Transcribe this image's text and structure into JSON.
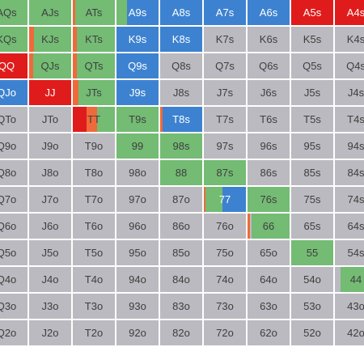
{
  "colors": {
    "fold": "#babac0",
    "raise": "#e01b1b",
    "call": "#74bb74",
    "allin": "#3d82d0",
    "limp": "#ef6a3a",
    "text_dark": "#3f3f3f",
    "text_light": "#ffffff"
  },
  "rows": [
    [
      {
        "label": "AQs",
        "segs": [
          [
            "call",
            1
          ]
        ]
      },
      {
        "label": "AJs",
        "segs": [
          [
            "call",
            1
          ]
        ]
      },
      {
        "label": "ATs",
        "segs": [
          [
            "limp",
            0.06
          ],
          [
            "call",
            0.94
          ]
        ]
      },
      {
        "label": "A9s",
        "segs": [
          [
            "call",
            0.25
          ],
          [
            "allin",
            0.75
          ]
        ]
      },
      {
        "label": "A8s",
        "segs": [
          [
            "allin",
            1
          ]
        ]
      },
      {
        "label": "A7s",
        "segs": [
          [
            "allin",
            1
          ]
        ]
      },
      {
        "label": "A6s",
        "segs": [
          [
            "allin",
            1
          ]
        ]
      },
      {
        "label": "A5s",
        "segs": [
          [
            "raise",
            1
          ]
        ]
      },
      {
        "label": "A4s",
        "segs": [
          [
            "raise",
            1
          ]
        ]
      }
    ],
    [
      {
        "label": "KQs",
        "segs": [
          [
            "call",
            1
          ]
        ]
      },
      {
        "label": "KJs",
        "segs": [
          [
            "limp",
            0.12
          ],
          [
            "call",
            0.88
          ]
        ]
      },
      {
        "label": "KTs",
        "segs": [
          [
            "limp",
            0.1
          ],
          [
            "call",
            0.9
          ]
        ]
      },
      {
        "label": "K9s",
        "segs": [
          [
            "allin",
            1
          ]
        ]
      },
      {
        "label": "K8s",
        "segs": [
          [
            "allin",
            1
          ]
        ]
      },
      {
        "label": "K7s",
        "segs": [
          [
            "fold",
            1
          ]
        ]
      },
      {
        "label": "K6s",
        "segs": [
          [
            "fold",
            1
          ]
        ]
      },
      {
        "label": "K5s",
        "segs": [
          [
            "fold",
            1
          ]
        ]
      },
      {
        "label": "K4s",
        "segs": [
          [
            "fold",
            1
          ]
        ]
      }
    ],
    [
      {
        "label": "QQ",
        "segs": [
          [
            "raise",
            1
          ]
        ]
      },
      {
        "label": "QJs",
        "segs": [
          [
            "limp",
            0.1
          ],
          [
            "call",
            0.9
          ]
        ]
      },
      {
        "label": "QTs",
        "segs": [
          [
            "limp",
            0.1
          ],
          [
            "call",
            0.9
          ]
        ]
      },
      {
        "label": "Q9s",
        "segs": [
          [
            "allin",
            1
          ]
        ]
      },
      {
        "label": "Q8s",
        "segs": [
          [
            "fold",
            1
          ]
        ]
      },
      {
        "label": "Q7s",
        "segs": [
          [
            "fold",
            1
          ]
        ]
      },
      {
        "label": "Q6s",
        "segs": [
          [
            "fold",
            1
          ]
        ]
      },
      {
        "label": "Q5s",
        "segs": [
          [
            "fold",
            1
          ]
        ]
      },
      {
        "label": "Q4s",
        "segs": [
          [
            "fold",
            1
          ]
        ]
      }
    ],
    [
      {
        "label": "QJo",
        "segs": [
          [
            "allin",
            1
          ]
        ]
      },
      {
        "label": "JJ",
        "segs": [
          [
            "raise",
            1
          ]
        ]
      },
      {
        "label": "JTs",
        "segs": [
          [
            "limp",
            0.14
          ],
          [
            "call",
            0.86
          ]
        ]
      },
      {
        "label": "J9s",
        "segs": [
          [
            "allin",
            1
          ]
        ]
      },
      {
        "label": "J8s",
        "segs": [
          [
            "fold",
            1
          ]
        ]
      },
      {
        "label": "J7s",
        "segs": [
          [
            "fold",
            1
          ]
        ]
      },
      {
        "label": "J6s",
        "segs": [
          [
            "fold",
            1
          ]
        ]
      },
      {
        "label": "J5s",
        "segs": [
          [
            "fold",
            1
          ]
        ]
      },
      {
        "label": "J4s",
        "segs": [
          [
            "fold",
            1
          ]
        ]
      }
    ],
    [
      {
        "label": "QTo",
        "segs": [
          [
            "fold",
            1
          ]
        ]
      },
      {
        "label": "JTo",
        "segs": [
          [
            "fold",
            1
          ]
        ]
      },
      {
        "label": "TT",
        "segs": [
          [
            "raise",
            0.32
          ],
          [
            "limp",
            0.26
          ],
          [
            "call",
            0.42
          ]
        ]
      },
      {
        "label": "T9s",
        "segs": [
          [
            "call",
            1
          ]
        ]
      },
      {
        "label": "T8s",
        "segs": [
          [
            "limp",
            0.05
          ],
          [
            "allin",
            0.95
          ]
        ]
      },
      {
        "label": "T7s",
        "segs": [
          [
            "fold",
            1
          ]
        ]
      },
      {
        "label": "T6s",
        "segs": [
          [
            "fold",
            1
          ]
        ]
      },
      {
        "label": "T5s",
        "segs": [
          [
            "fold",
            1
          ]
        ]
      },
      {
        "label": "T4s",
        "segs": [
          [
            "fold",
            1
          ]
        ]
      }
    ],
    [
      {
        "label": "Q9o",
        "segs": [
          [
            "fold",
            1
          ]
        ]
      },
      {
        "label": "J9o",
        "segs": [
          [
            "fold",
            1
          ]
        ]
      },
      {
        "label": "T9o",
        "segs": [
          [
            "fold",
            1
          ]
        ]
      },
      {
        "label": "99",
        "segs": [
          [
            "call",
            1
          ]
        ]
      },
      {
        "label": "98s",
        "segs": [
          [
            "call",
            1
          ]
        ]
      },
      {
        "label": "97s",
        "segs": [
          [
            "fold",
            1
          ]
        ]
      },
      {
        "label": "96s",
        "segs": [
          [
            "fold",
            1
          ]
        ]
      },
      {
        "label": "95s",
        "segs": [
          [
            "fold",
            1
          ]
        ]
      },
      {
        "label": "94s",
        "segs": [
          [
            "fold",
            1
          ]
        ]
      }
    ],
    [
      {
        "label": "Q8o",
        "segs": [
          [
            "fold",
            1
          ]
        ]
      },
      {
        "label": "J8o",
        "segs": [
          [
            "fold",
            1
          ]
        ]
      },
      {
        "label": "T8o",
        "segs": [
          [
            "fold",
            1
          ]
        ]
      },
      {
        "label": "98o",
        "segs": [
          [
            "fold",
            1
          ]
        ]
      },
      {
        "label": "88",
        "segs": [
          [
            "call",
            1
          ]
        ]
      },
      {
        "label": "87s",
        "segs": [
          [
            "call",
            1
          ]
        ]
      },
      {
        "label": "86s",
        "segs": [
          [
            "fold",
            1
          ]
        ]
      },
      {
        "label": "85s",
        "segs": [
          [
            "fold",
            1
          ]
        ]
      },
      {
        "label": "84s",
        "segs": [
          [
            "fold",
            1
          ]
        ]
      }
    ],
    [
      {
        "label": "Q7o",
        "segs": [
          [
            "fold",
            1
          ]
        ]
      },
      {
        "label": "J7o",
        "segs": [
          [
            "fold",
            1
          ]
        ]
      },
      {
        "label": "T7o",
        "segs": [
          [
            "fold",
            1
          ]
        ]
      },
      {
        "label": "97o",
        "segs": [
          [
            "fold",
            1
          ]
        ]
      },
      {
        "label": "87o",
        "segs": [
          [
            "fold",
            1
          ]
        ]
      },
      {
        "label": "77",
        "segs": [
          [
            "limp",
            0.04
          ],
          [
            "call",
            0.4
          ],
          [
            "allin",
            0.56
          ]
        ]
      },
      {
        "label": "76s",
        "segs": [
          [
            "call",
            1
          ]
        ]
      },
      {
        "label": "75s",
        "segs": [
          [
            "fold",
            1
          ]
        ]
      },
      {
        "label": "74s",
        "segs": [
          [
            "fold",
            1
          ]
        ]
      }
    ],
    [
      {
        "label": "Q6o",
        "segs": [
          [
            "fold",
            1
          ]
        ]
      },
      {
        "label": "J6o",
        "segs": [
          [
            "fold",
            1
          ]
        ]
      },
      {
        "label": "T6o",
        "segs": [
          [
            "fold",
            1
          ]
        ]
      },
      {
        "label": "96o",
        "segs": [
          [
            "fold",
            1
          ]
        ]
      },
      {
        "label": "86o",
        "segs": [
          [
            "fold",
            1
          ]
        ]
      },
      {
        "label": "76o",
        "segs": [
          [
            "fold",
            1
          ]
        ]
      },
      {
        "label": "66",
        "segs": [
          [
            "limp",
            0.05
          ],
          [
            "fold",
            0.05
          ],
          [
            "call",
            0.9
          ]
        ]
      },
      {
        "label": "65s",
        "segs": [
          [
            "fold",
            1
          ]
        ]
      },
      {
        "label": "64s",
        "segs": [
          [
            "fold",
            1
          ]
        ]
      }
    ],
    [
      {
        "label": "Q5o",
        "segs": [
          [
            "fold",
            1
          ]
        ]
      },
      {
        "label": "J5o",
        "segs": [
          [
            "fold",
            1
          ]
        ]
      },
      {
        "label": "T5o",
        "segs": [
          [
            "fold",
            1
          ]
        ]
      },
      {
        "label": "95o",
        "segs": [
          [
            "fold",
            1
          ]
        ]
      },
      {
        "label": "85o",
        "segs": [
          [
            "fold",
            1
          ]
        ]
      },
      {
        "label": "75o",
        "segs": [
          [
            "fold",
            1
          ]
        ]
      },
      {
        "label": "65o",
        "segs": [
          [
            "fold",
            1
          ]
        ]
      },
      {
        "label": "55",
        "segs": [
          [
            "call",
            1
          ]
        ]
      },
      {
        "label": "54s",
        "segs": [
          [
            "fold",
            1
          ]
        ]
      }
    ],
    [
      {
        "label": "Q4o",
        "segs": [
          [
            "fold",
            1
          ]
        ]
      },
      {
        "label": "J4o",
        "segs": [
          [
            "fold",
            1
          ]
        ]
      },
      {
        "label": "T4o",
        "segs": [
          [
            "fold",
            1
          ]
        ]
      },
      {
        "label": "94o",
        "segs": [
          [
            "fold",
            1
          ]
        ]
      },
      {
        "label": "84o",
        "segs": [
          [
            "fold",
            1
          ]
        ]
      },
      {
        "label": "74o",
        "segs": [
          [
            "fold",
            1
          ]
        ]
      },
      {
        "label": "64o",
        "segs": [
          [
            "fold",
            1
          ]
        ]
      },
      {
        "label": "54o",
        "segs": [
          [
            "fold",
            1
          ]
        ]
      },
      {
        "label": "44",
        "segs": [
          [
            "fold",
            0.14
          ],
          [
            "call",
            0.86
          ]
        ]
      }
    ],
    [
      {
        "label": "Q3o",
        "segs": [
          [
            "fold",
            1
          ]
        ]
      },
      {
        "label": "J3o",
        "segs": [
          [
            "fold",
            1
          ]
        ]
      },
      {
        "label": "T3o",
        "segs": [
          [
            "fold",
            1
          ]
        ]
      },
      {
        "label": "93o",
        "segs": [
          [
            "fold",
            1
          ]
        ]
      },
      {
        "label": "83o",
        "segs": [
          [
            "fold",
            1
          ]
        ]
      },
      {
        "label": "73o",
        "segs": [
          [
            "fold",
            1
          ]
        ]
      },
      {
        "label": "63o",
        "segs": [
          [
            "fold",
            1
          ]
        ]
      },
      {
        "label": "53o",
        "segs": [
          [
            "fold",
            1
          ]
        ]
      },
      {
        "label": "43o",
        "segs": [
          [
            "fold",
            1
          ]
        ]
      }
    ],
    [
      {
        "label": "Q2o",
        "segs": [
          [
            "fold",
            1
          ]
        ]
      },
      {
        "label": "J2o",
        "segs": [
          [
            "fold",
            1
          ]
        ]
      },
      {
        "label": "T2o",
        "segs": [
          [
            "fold",
            1
          ]
        ]
      },
      {
        "label": "92o",
        "segs": [
          [
            "fold",
            1
          ]
        ]
      },
      {
        "label": "82o",
        "segs": [
          [
            "fold",
            1
          ]
        ]
      },
      {
        "label": "72o",
        "segs": [
          [
            "fold",
            1
          ]
        ]
      },
      {
        "label": "62o",
        "segs": [
          [
            "fold",
            1
          ]
        ]
      },
      {
        "label": "52o",
        "segs": [
          [
            "fold",
            1
          ]
        ]
      },
      {
        "label": "42o",
        "segs": [
          [
            "fold",
            1
          ]
        ]
      }
    ]
  ]
}
